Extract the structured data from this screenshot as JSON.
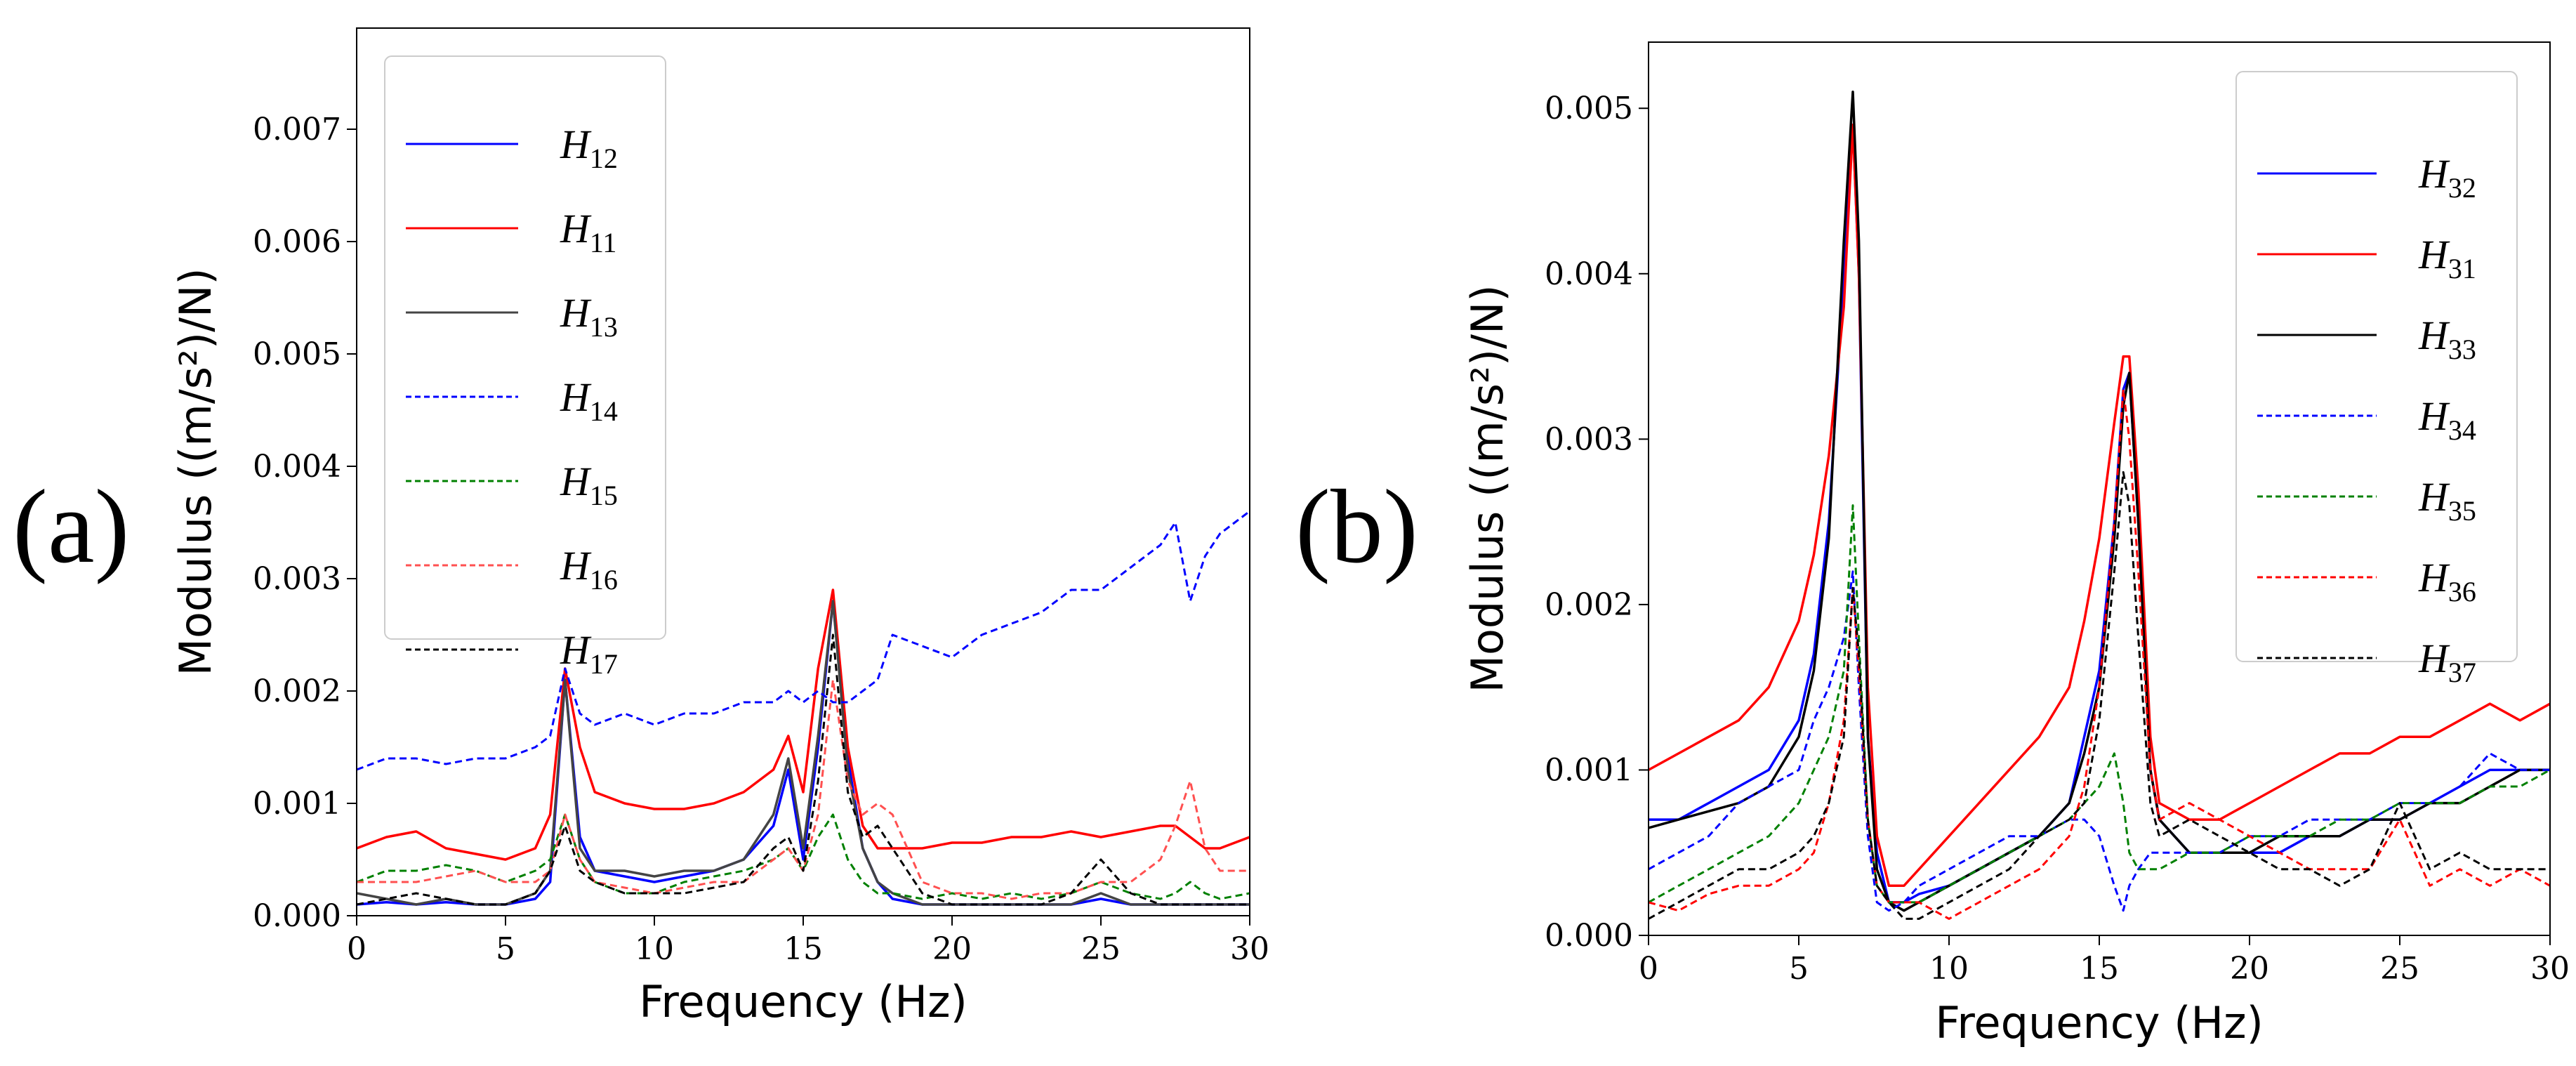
{
  "chart_data": [
    {
      "panel_label": "(a)",
      "type": "line",
      "xlabel": "Frequency (Hz)",
      "ylabel": "Modulus ((m/s²)/N)",
      "xlim": [
        0,
        30
      ],
      "ylim": [
        0,
        0.0079
      ],
      "xticks": [
        "0",
        "5",
        "10",
        "15",
        "20",
        "25",
        "30"
      ],
      "yticks": [
        "0.000",
        "0.001",
        "0.002",
        "0.003",
        "0.004",
        "0.005",
        "0.006",
        "0.007"
      ],
      "grid": false,
      "legend_position": "top-left",
      "x": [
        0,
        1,
        2,
        3,
        4,
        5,
        6,
        6.5,
        7,
        7.5,
        8,
        9,
        10,
        11,
        12,
        13,
        14,
        14.5,
        15,
        15.5,
        16,
        16.5,
        17,
        17.5,
        18,
        19,
        20,
        21,
        22,
        23,
        24,
        25,
        26,
        27,
        27.5,
        28,
        28.5,
        29,
        30
      ],
      "series": [
        {
          "name": "H",
          "sub": "12",
          "color": "#0000ff",
          "dash": "solid",
          "values": [
            0.0001,
            0.00012,
            0.0001,
            0.00012,
            0.0001,
            0.0001,
            0.00015,
            0.0003,
            0.0021,
            0.0007,
            0.0004,
            0.00035,
            0.0003,
            0.00035,
            0.0004,
            0.0005,
            0.0008,
            0.0013,
            0.0005,
            0.0015,
            0.0028,
            0.0014,
            0.0006,
            0.0003,
            0.00015,
            0.0001,
            0.0001,
            0.0001,
            0.0001,
            0.0001,
            0.0001,
            0.00015,
            0.0001,
            0.0001,
            0.0001,
            0.0001,
            0.0001,
            0.0001,
            0.0001
          ]
        },
        {
          "name": "H",
          "sub": "11",
          "color": "#ff0000",
          "dash": "solid",
          "values": [
            0.0006,
            0.0007,
            0.00075,
            0.0006,
            0.00055,
            0.0005,
            0.0006,
            0.0009,
            0.0022,
            0.0015,
            0.0011,
            0.001,
            0.00095,
            0.00095,
            0.001,
            0.0011,
            0.0013,
            0.0016,
            0.0011,
            0.0022,
            0.0029,
            0.0015,
            0.0008,
            0.0006,
            0.0006,
            0.0006,
            0.00065,
            0.00065,
            0.0007,
            0.0007,
            0.00075,
            0.0007,
            0.00075,
            0.0008,
            0.0008,
            0.0007,
            0.0006,
            0.0006,
            0.0007
          ]
        },
        {
          "name": "H",
          "sub": "13",
          "color": "#444444",
          "dash": "solid",
          "values": [
            0.0002,
            0.00015,
            0.0001,
            0.00015,
            0.0001,
            0.0001,
            0.0002,
            0.0004,
            0.0021,
            0.0006,
            0.0004,
            0.0004,
            0.00035,
            0.0004,
            0.0004,
            0.0005,
            0.0009,
            0.0014,
            0.0006,
            0.0016,
            0.0028,
            0.0013,
            0.0006,
            0.0003,
            0.0002,
            0.0001,
            0.0001,
            0.0001,
            0.0001,
            0.0001,
            0.0001,
            0.0002,
            0.0001,
            0.0001,
            0.0001,
            0.0001,
            0.0001,
            0.0001,
            0.0001
          ]
        },
        {
          "name": "H",
          "sub": "14",
          "color": "#0000ff",
          "dash": "dashed",
          "values": [
            0.0013,
            0.0014,
            0.0014,
            0.00135,
            0.0014,
            0.0014,
            0.0015,
            0.0016,
            0.0022,
            0.0018,
            0.0017,
            0.0018,
            0.0017,
            0.0018,
            0.0018,
            0.0019,
            0.0019,
            0.002,
            0.0019,
            0.002,
            0.0019,
            0.0019,
            0.002,
            0.0021,
            0.0025,
            0.0024,
            0.0023,
            0.0025,
            0.0026,
            0.0027,
            0.0029,
            0.0029,
            0.0031,
            0.0033,
            0.0035,
            0.0028,
            0.0032,
            0.0034,
            0.0036
          ]
        },
        {
          "name": "H",
          "sub": "15",
          "color": "#008000",
          "dash": "dashed",
          "values": [
            0.0003,
            0.0004,
            0.0004,
            0.00045,
            0.0004,
            0.0003,
            0.0004,
            0.0005,
            0.0009,
            0.0005,
            0.0003,
            0.0002,
            0.0002,
            0.0003,
            0.00035,
            0.0004,
            0.0005,
            0.0006,
            0.0004,
            0.0007,
            0.0009,
            0.0005,
            0.0003,
            0.0002,
            0.0002,
            0.00015,
            0.0002,
            0.00015,
            0.0002,
            0.00015,
            0.0002,
            0.0003,
            0.0002,
            0.00015,
            0.0002,
            0.0003,
            0.0002,
            0.00015,
            0.0002
          ]
        },
        {
          "name": "H",
          "sub": "16",
          "color": "#ff5050",
          "dash": "dashed",
          "values": [
            0.0003,
            0.0003,
            0.0003,
            0.00035,
            0.0004,
            0.0003,
            0.0003,
            0.0004,
            0.0009,
            0.0005,
            0.0003,
            0.00025,
            0.0002,
            0.00025,
            0.0003,
            0.0003,
            0.0005,
            0.0006,
            0.0004,
            0.0009,
            0.0021,
            0.0012,
            0.0009,
            0.001,
            0.0009,
            0.0003,
            0.0002,
            0.0002,
            0.00015,
            0.0002,
            0.0002,
            0.0003,
            0.0003,
            0.0005,
            0.0008,
            0.0012,
            0.0006,
            0.0004,
            0.0004
          ]
        },
        {
          "name": "H",
          "sub": "17",
          "color": "#000000",
          "dash": "dashed",
          "values": [
            0.0001,
            0.00015,
            0.0002,
            0.00015,
            0.0001,
            0.0001,
            0.0002,
            0.0004,
            0.0008,
            0.0004,
            0.0003,
            0.0002,
            0.0002,
            0.0002,
            0.00025,
            0.0003,
            0.0006,
            0.0007,
            0.0004,
            0.0012,
            0.0025,
            0.0011,
            0.0007,
            0.0008,
            0.0006,
            0.0002,
            0.0001,
            0.0001,
            0.0001,
            0.0001,
            0.0002,
            0.0005,
            0.0002,
            0.0001,
            0.0001,
            0.0001,
            0.0001,
            0.0001,
            0.0001
          ]
        }
      ]
    },
    {
      "panel_label": "(b)",
      "type": "line",
      "xlabel": "Frequency (Hz)",
      "ylabel": "Modulus ((m/s²)/N)",
      "xlim": [
        0,
        30
      ],
      "ylim": [
        0,
        0.0054
      ],
      "xticks": [
        "0",
        "5",
        "10",
        "15",
        "20",
        "25",
        "30"
      ],
      "yticks": [
        "0.000",
        "0.001",
        "0.002",
        "0.003",
        "0.004",
        "0.005"
      ],
      "grid": false,
      "legend_position": "top-right",
      "x": [
        0,
        1,
        2,
        3,
        4,
        5,
        5.5,
        6,
        6.5,
        6.8,
        7,
        7.3,
        7.6,
        8,
        8.5,
        9,
        10,
        11,
        12,
        13,
        14,
        14.5,
        15,
        15.5,
        15.8,
        16,
        16.3,
        16.7,
        17,
        18,
        19,
        20,
        21,
        22,
        23,
        24,
        25,
        26,
        27,
        28,
        29,
        30
      ],
      "series": [
        {
          "name": "H",
          "sub": "32",
          "color": "#0000ff",
          "dash": "solid",
          "values": [
            0.0007,
            0.0007,
            0.0008,
            0.0009,
            0.001,
            0.0013,
            0.0017,
            0.0025,
            0.004,
            0.0049,
            0.004,
            0.0012,
            0.0005,
            0.0002,
            0.0002,
            0.00025,
            0.0003,
            0.0004,
            0.0005,
            0.0006,
            0.0008,
            0.0012,
            0.0016,
            0.0025,
            0.0033,
            0.0034,
            0.0025,
            0.001,
            0.0007,
            0.0005,
            0.0005,
            0.0005,
            0.0005,
            0.0006,
            0.0006,
            0.0007,
            0.0007,
            0.0008,
            0.0009,
            0.001,
            0.001,
            0.001
          ]
        },
        {
          "name": "H",
          "sub": "31",
          "color": "#ff0000",
          "dash": "solid",
          "values": [
            0.001,
            0.0011,
            0.0012,
            0.0013,
            0.0015,
            0.0019,
            0.0023,
            0.0029,
            0.0038,
            0.0049,
            0.004,
            0.0015,
            0.0006,
            0.0003,
            0.0003,
            0.0004,
            0.0006,
            0.0008,
            0.001,
            0.0012,
            0.0015,
            0.0019,
            0.0024,
            0.0031,
            0.0035,
            0.0035,
            0.0027,
            0.0012,
            0.0008,
            0.0007,
            0.0007,
            0.0008,
            0.0009,
            0.001,
            0.0011,
            0.0011,
            0.0012,
            0.0012,
            0.0013,
            0.0014,
            0.0013,
            0.0014
          ]
        },
        {
          "name": "H",
          "sub": "33",
          "color": "#000000",
          "dash": "solid",
          "values": [
            0.00065,
            0.0007,
            0.00075,
            0.0008,
            0.0009,
            0.0012,
            0.0016,
            0.0024,
            0.0042,
            0.0051,
            0.0042,
            0.0012,
            0.0004,
            0.0002,
            0.00015,
            0.0002,
            0.0003,
            0.0004,
            0.0005,
            0.0006,
            0.0008,
            0.0011,
            0.0015,
            0.0024,
            0.0032,
            0.0034,
            0.0025,
            0.001,
            0.0007,
            0.0005,
            0.0005,
            0.0005,
            0.0006,
            0.0006,
            0.0006,
            0.0007,
            0.0007,
            0.0008,
            0.0008,
            0.0009,
            0.001,
            0.001
          ]
        },
        {
          "name": "H",
          "sub": "34",
          "color": "#0000ff",
          "dash": "dashed",
          "values": [
            0.0004,
            0.0005,
            0.0006,
            0.0008,
            0.0009,
            0.001,
            0.0013,
            0.0015,
            0.0018,
            0.0022,
            0.0015,
            0.0006,
            0.0002,
            0.00015,
            0.0002,
            0.0003,
            0.0004,
            0.0005,
            0.0006,
            0.0006,
            0.0007,
            0.0007,
            0.0006,
            0.0003,
            0.00015,
            0.0003,
            0.0004,
            0.0005,
            0.0005,
            0.0005,
            0.0005,
            0.0006,
            0.0006,
            0.0007,
            0.0007,
            0.0007,
            0.0008,
            0.0008,
            0.0009,
            0.0011,
            0.001,
            0.001
          ]
        },
        {
          "name": "H",
          "sub": "35",
          "color": "#008000",
          "dash": "dashed",
          "values": [
            0.0002,
            0.0003,
            0.0004,
            0.0005,
            0.0006,
            0.0008,
            0.001,
            0.0012,
            0.0016,
            0.0026,
            0.0018,
            0.0007,
            0.0003,
            0.0002,
            0.0002,
            0.0002,
            0.0003,
            0.0004,
            0.0005,
            0.0006,
            0.0007,
            0.0008,
            0.0009,
            0.0011,
            0.0008,
            0.0005,
            0.0004,
            0.0004,
            0.0004,
            0.0005,
            0.0005,
            0.0006,
            0.0006,
            0.0006,
            0.0007,
            0.0007,
            0.0008,
            0.0008,
            0.0008,
            0.0009,
            0.0009,
            0.001
          ]
        },
        {
          "name": "H",
          "sub": "36",
          "color": "#ff0000",
          "dash": "dashed",
          "values": [
            0.0002,
            0.00015,
            0.00025,
            0.0003,
            0.0003,
            0.0004,
            0.0005,
            0.0008,
            0.0013,
            0.0021,
            0.0016,
            0.0007,
            0.0003,
            0.0002,
            0.0002,
            0.0002,
            0.0001,
            0.0002,
            0.0003,
            0.0004,
            0.0006,
            0.0009,
            0.0015,
            0.0025,
            0.0033,
            0.003,
            0.0022,
            0.001,
            0.0007,
            0.0008,
            0.0007,
            0.0006,
            0.0005,
            0.0004,
            0.0004,
            0.0004,
            0.0007,
            0.0003,
            0.0004,
            0.0003,
            0.0004,
            0.0003
          ]
        },
        {
          "name": "H",
          "sub": "37",
          "color": "#000000",
          "dash": "dashed",
          "values": [
            0.0001,
            0.0002,
            0.0003,
            0.0004,
            0.0004,
            0.0005,
            0.0006,
            0.0008,
            0.0012,
            0.0021,
            0.0017,
            0.0007,
            0.0003,
            0.0002,
            0.0001,
            0.0001,
            0.0002,
            0.0003,
            0.0004,
            0.0006,
            0.0007,
            0.0008,
            0.0013,
            0.0022,
            0.0028,
            0.0026,
            0.0018,
            0.0008,
            0.0006,
            0.0007,
            0.0006,
            0.0005,
            0.0004,
            0.0004,
            0.0003,
            0.0004,
            0.0008,
            0.0004,
            0.0005,
            0.0004,
            0.0004,
            0.0004
          ]
        }
      ]
    }
  ]
}
